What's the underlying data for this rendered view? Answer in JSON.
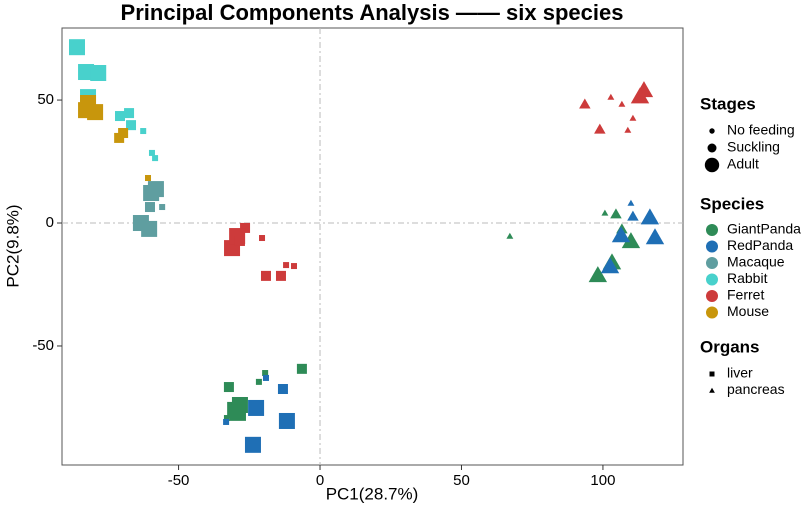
{
  "chart_data": {
    "type": "scatter",
    "title": "Principal Components Analysis —— six species",
    "xlabel": "PC1(28.7%)",
    "ylabel": "PC2(9.8%)",
    "xlim": [
      -91.2,
      128.3
    ],
    "ylim": [
      -98.4,
      79.3
    ],
    "xticks": [
      -50,
      0,
      50,
      100
    ],
    "yticks": [
      -50,
      0,
      50
    ],
    "reference_lines": {
      "x": 0,
      "y": 0
    },
    "stages_title": "Stages",
    "stages": [
      "No feeding",
      "Suckling",
      "Adult"
    ],
    "species_title": "Species",
    "organs_title": "Organs",
    "organs": [
      "liver",
      "pancreas"
    ],
    "series": [
      {
        "name": "GiantPanda",
        "color": "#2e8b57",
        "x": [
          -30.0,
          -28.3,
          -32.2,
          -29.0,
          -32.9,
          -6.4,
          -19.4,
          -21.6,
          67.1,
          98.2,
          103.2,
          109.9,
          104.6,
          100.7,
          106.7
        ],
        "y": [
          -76.0,
          -74.0,
          -66.7,
          -77.2,
          -79.3,
          -59.3,
          -61.0,
          -64.6,
          -5.3,
          -21.1,
          -15.9,
          -7.3,
          3.7,
          4.1,
          -2.4
        ],
        "stage": [
          "Adult",
          "Adult",
          "Suckling",
          "Adult",
          "No feeding",
          "Suckling",
          "No feeding",
          "No feeding",
          "No feeding",
          "Adult",
          "Adult",
          "Adult",
          "Suckling",
          "No feeding",
          "Suckling"
        ],
        "organ": [
          "liver",
          "liver",
          "liver",
          "liver",
          "liver",
          "liver",
          "liver",
          "liver",
          "pancreas",
          "pancreas",
          "pancreas",
          "pancreas",
          "pancreas",
          "pancreas",
          "pancreas"
        ]
      },
      {
        "name": "RedPanda",
        "color": "#1f6fb5",
        "x": [
          -23.7,
          -22.6,
          -11.7,
          -13.1,
          -19.1,
          -33.2,
          106.4,
          116.6,
          118.4,
          110.6,
          109.9,
          102.5
        ],
        "y": [
          -90.2,
          -75.2,
          -80.5,
          -67.5,
          -63.0,
          -80.9,
          -4.9,
          2.4,
          -5.7,
          2.8,
          8.1,
          -17.5
        ],
        "stage": [
          "Adult",
          "Adult",
          "Adult",
          "Suckling",
          "No feeding",
          "No feeding",
          "Adult",
          "Adult",
          "Adult",
          "Suckling",
          "No feeding",
          "Adult"
        ],
        "organ": [
          "liver",
          "liver",
          "liver",
          "liver",
          "liver",
          "liver",
          "pancreas",
          "pancreas",
          "pancreas",
          "pancreas",
          "pancreas",
          "pancreas"
        ]
      },
      {
        "name": "Macaque",
        "color": "#5f9ea0",
        "x": [
          -58.0,
          -59.7,
          -63.3,
          -60.4,
          -60.1,
          -55.8
        ],
        "y": [
          13.8,
          12.2,
          0,
          -2.4,
          6.5,
          6.5
        ],
        "stage": [
          "Adult",
          "Adult",
          "Adult",
          "Adult",
          "Suckling",
          "No feeding"
        ],
        "organ": [
          "liver",
          "liver",
          "liver",
          "liver",
          "liver",
          "liver"
        ]
      },
      {
        "name": "Rabbit",
        "color": "#48d1cc",
        "x": [
          -85.9,
          -82.7,
          -78.4,
          -82.0,
          -70.7,
          -67.5,
          -66.8,
          -62.5,
          -59.4,
          -58.3
        ],
        "y": [
          71.5,
          61.4,
          61.0,
          51.2,
          43.5,
          44.7,
          39.8,
          37.4,
          28.5,
          26.4
        ],
        "stage": [
          "Adult",
          "Adult",
          "Adult",
          "Adult",
          "Suckling",
          "Suckling",
          "Suckling",
          "No feeding",
          "No feeding",
          "No feeding"
        ],
        "organ": [
          "liver",
          "liver",
          "liver",
          "liver",
          "liver",
          "liver",
          "liver",
          "liver",
          "liver",
          "liver"
        ]
      },
      {
        "name": "Ferret",
        "color": "#cd3b3b",
        "x": [
          -26.5,
          -31.1,
          -29.3,
          -28.3,
          -20.5,
          -19.1,
          -13.8,
          -12.0,
          -9.2,
          93.6,
          102.8,
          106.7,
          114.5,
          113.1,
          110.6,
          98.9,
          108.8
        ],
        "y": [
          -2,
          -10.2,
          -5.3,
          -7.3,
          -6.1,
          -21.5,
          -21.5,
          -17.1,
          -17.5,
          48.4,
          51.2,
          48.4,
          54.1,
          51.6,
          42.7,
          38.2,
          37.8
        ],
        "stage": [
          "Suckling",
          "Adult",
          "Adult",
          "Suckling",
          "No feeding",
          "Suckling",
          "Suckling",
          "No feeding",
          "No feeding",
          "Suckling",
          "No feeding",
          "No feeding",
          "Adult",
          "Adult",
          "No feeding",
          "Suckling",
          "No feeding"
        ],
        "organ": [
          "liver",
          "liver",
          "liver",
          "liver",
          "liver",
          "liver",
          "liver",
          "liver",
          "liver",
          "pancreas",
          "pancreas",
          "pancreas",
          "pancreas",
          "pancreas",
          "pancreas",
          "pancreas",
          "pancreas"
        ]
      },
      {
        "name": "Mouse",
        "color": "#c8960c",
        "x": [
          -82.0,
          -79.5,
          -82.7,
          -71.0,
          -69.6,
          -60.8
        ],
        "y": [
          48.8,
          45.1,
          45.9,
          34.6,
          36.6,
          18.3
        ],
        "stage": [
          "Adult",
          "Adult",
          "Adult",
          "Suckling",
          "Suckling",
          "No feeding"
        ],
        "organ": [
          "liver",
          "liver",
          "liver",
          "liver",
          "liver",
          "liver"
        ]
      }
    ]
  }
}
